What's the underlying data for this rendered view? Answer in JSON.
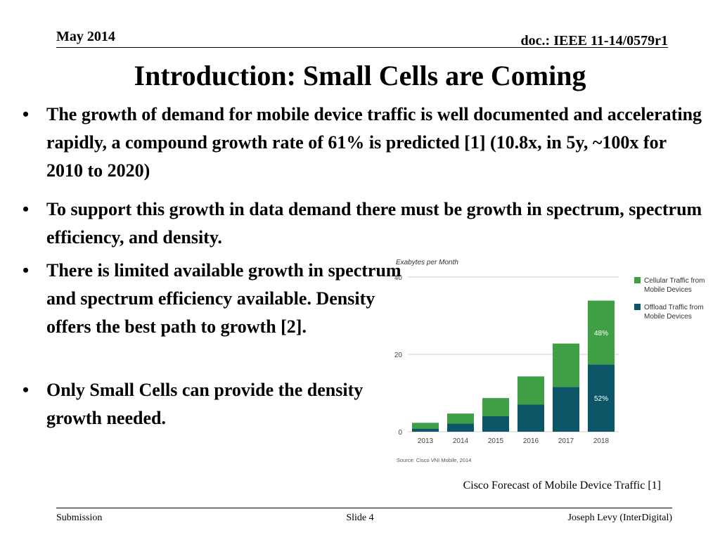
{
  "header": {
    "date": "May 2014",
    "doc": "doc.: IEEE 11-14/0579r1"
  },
  "title": "Introduction: Small Cells are Coming",
  "bullets": [
    "The growth of demand for mobile device traffic is well documented and accelerating rapidly, a compound growth rate of 61% is predicted [1] (10.8x, in 5y, ~100x for 2010 to 2020)",
    "To support this growth in data demand there must be growth in spectrum, spectrum efficiency, and density.",
    "There is limited available growth in spectrum and spectrum efficiency available. Density offers the best path to growth [2].",
    "Only Small Cells can provide the density growth needed."
  ],
  "bullet_symbol": "•",
  "chart_data": {
    "type": "bar",
    "stacked": true,
    "ylabel": "Exabytes per Month",
    "ylim": [
      0,
      40
    ],
    "yticks": [
      0,
      20,
      40
    ],
    "grid": true,
    "legend_position": "right",
    "categories": [
      "2013",
      "2014",
      "2015",
      "2016",
      "2017",
      "2018"
    ],
    "series": [
      {
        "name": "Offload Traffic from Mobile Devices",
        "color": "#0d5668",
        "values": [
          0.8,
          2.1,
          4.0,
          7.0,
          11.6,
          17.4
        ]
      },
      {
        "name": "Cellular Traffic from Mobile Devices",
        "color": "#3f9f45",
        "values": [
          1.5,
          2.6,
          4.7,
          7.3,
          11.2,
          16.5
        ]
      }
    ],
    "annotations": [
      {
        "category": "2018",
        "series": 1,
        "text": "48%"
      },
      {
        "category": "2018",
        "series": 0,
        "text": "52%"
      }
    ],
    "source": "Source: Cisco VNI Mobile, 2014"
  },
  "caption": "Cisco Forecast of Mobile Device Traffic [1]",
  "footer": {
    "left": "Submission",
    "center": "Slide 4",
    "right": "Joseph Levy (InterDigital)"
  }
}
